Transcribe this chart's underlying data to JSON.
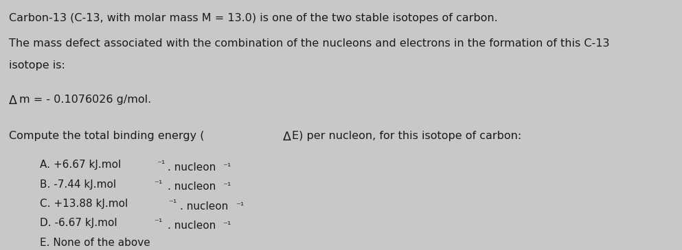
{
  "background_color": "#c8c8c8",
  "text_color": "#1a1a1a",
  "font_size_main": 11.5,
  "font_size_options": 11.0,
  "line1": "Carbon-13 (C-13, with molar mass M = 13.0) is one of the two stable isotopes of carbon.",
  "line2a": "The mass defect associated with the combination of the nucleons and electrons in the formation of this C-13",
  "line2b": "isotope is:",
  "line3_prefix": "m = - 0.1076026 g/mol.",
  "line4": "Compute the total binding energy (   E) per nucleon, for this isotope of carbon:",
  "optA": "A. +6.67 kJ.mol",
  "optA_sup1": "-1",
  "optA_mid": ". nucleon",
  "optA_sup2": "-1",
  "optB": "B. -7.44 kJ.mol",
  "optB_sup1": "-1",
  "optB_mid": ". nucleon",
  "optB_sup2": "-1",
  "optC": "C. +13.88 kJ.mol",
  "optC_sup1": "-1",
  "optC_mid": ". nucleon",
  "optC_sup2": "-1",
  "optD": "D. -6.67 kJ.mol",
  "optD_sup1": "-1",
  "optD_mid": ". nucleon",
  "optD_sup2": "-1",
  "optE": "E. None of the above"
}
